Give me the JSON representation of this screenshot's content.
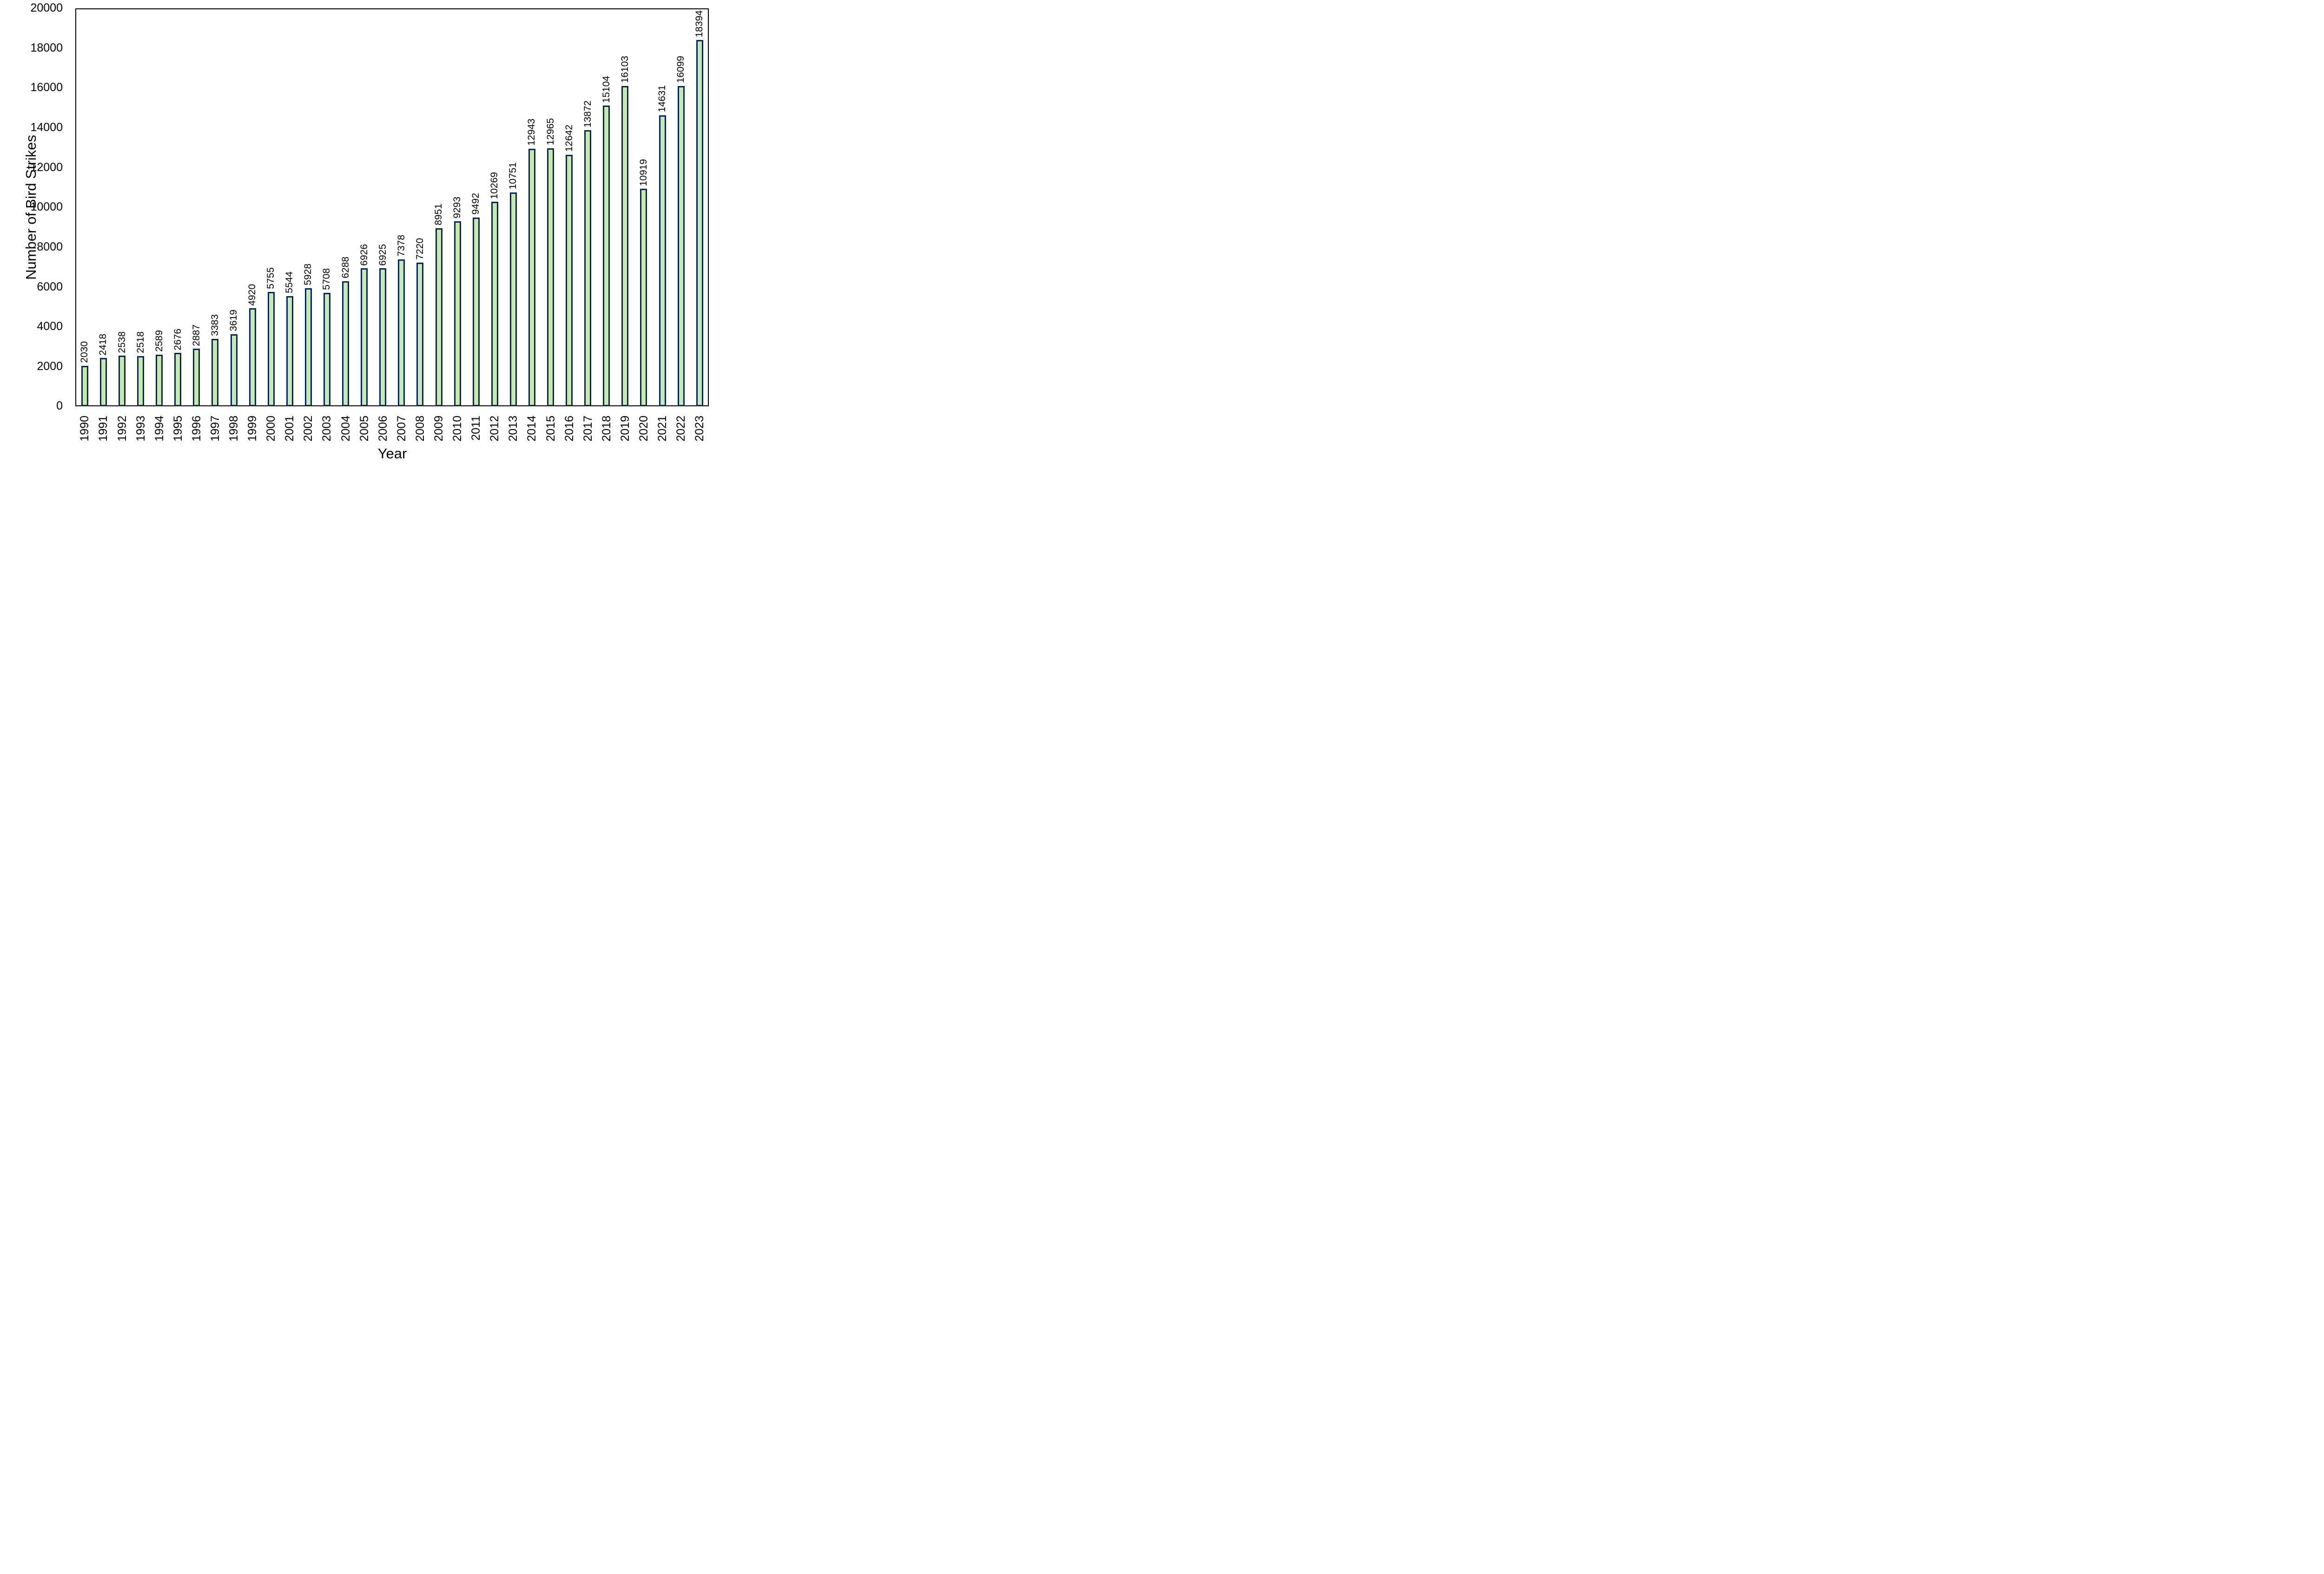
{
  "chart_data": {
    "type": "bar",
    "title": "",
    "xlabel": "Year",
    "ylabel": "Number of Bird Strikes",
    "categories": [
      "1990",
      "1991",
      "1992",
      "1993",
      "1994",
      "1995",
      "1996",
      "1997",
      "1998",
      "1999",
      "2000",
      "2001",
      "2002",
      "2003",
      "2004",
      "2005",
      "2006",
      "2007",
      "2008",
      "2009",
      "2010",
      "2011",
      "2012",
      "2013",
      "2014",
      "2015",
      "2016",
      "2017",
      "2018",
      "2019",
      "2020",
      "2021",
      "2022",
      "2023"
    ],
    "values": [
      2030,
      2418,
      2538,
      2518,
      2589,
      2676,
      2887,
      3383,
      3619,
      4920,
      5755,
      5544,
      5928,
      5708,
      6288,
      6926,
      6925,
      7378,
      7220,
      8951,
      9293,
      9492,
      10269,
      10751,
      12943,
      12965,
      12642,
      13872,
      15104,
      16103,
      10919,
      14631,
      16099,
      18394
    ],
    "ylim": [
      0,
      20000
    ],
    "ytick_step": 2000,
    "ytick_labels": [
      "0",
      "2000",
      "4000",
      "6000",
      "8000",
      "10000",
      "12000",
      "14000",
      "16000",
      "18000",
      "20000"
    ],
    "data_labels_shown": true,
    "grid": false,
    "legend": "none",
    "bar_fill_color": "#c4e8b0",
    "bar_border_color": "#08265c",
    "axis_color": "#000000",
    "label_rotation_degrees": 90
  }
}
